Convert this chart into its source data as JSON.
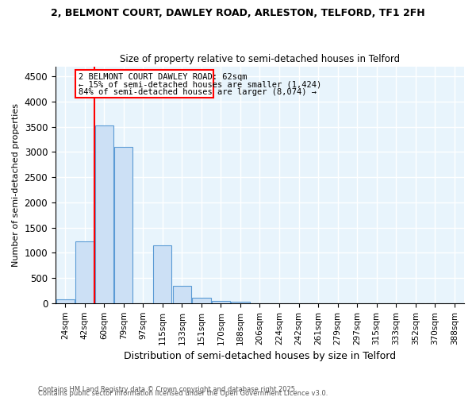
{
  "title1": "2, BELMONT COURT, DAWLEY ROAD, ARLESTON, TELFORD, TF1 2FH",
  "title2": "Size of property relative to semi-detached houses in Telford",
  "xlabel": "Distribution of semi-detached houses by size in Telford",
  "ylabel": "Number of semi-detached properties",
  "categories": [
    "24sqm",
    "42sqm",
    "60sqm",
    "79sqm",
    "97sqm",
    "115sqm",
    "133sqm",
    "151sqm",
    "170sqm",
    "188sqm",
    "206sqm",
    "224sqm",
    "242sqm",
    "261sqm",
    "279sqm",
    "297sqm",
    "315sqm",
    "333sqm",
    "352sqm",
    "370sqm",
    "388sqm"
  ],
  "values": [
    75,
    1220,
    3520,
    3100,
    0,
    1150,
    340,
    110,
    50,
    30,
    0,
    0,
    0,
    0,
    0,
    0,
    0,
    0,
    0,
    0,
    0
  ],
  "bar_color": "#cce0f5",
  "bar_edge_color": "#5b9bd5",
  "red_line_index": 2,
  "red_line_label": "2 BELMONT COURT DAWLEY ROAD: 62sqm",
  "annotation_smaller": "← 15% of semi-detached houses are smaller (1,424)",
  "annotation_larger": "84% of semi-detached houses are larger (8,074) →",
  "ylim": [
    0,
    4700
  ],
  "yticks": [
    0,
    500,
    1000,
    1500,
    2000,
    2500,
    3000,
    3500,
    4000,
    4500
  ],
  "bar_color_light": "#daeaf8",
  "background_color": "#e8f4fc",
  "footer1": "Contains HM Land Registry data © Crown copyright and database right 2025.",
  "footer2": "Contains public sector information licensed under the Open Government Licence v3.0."
}
